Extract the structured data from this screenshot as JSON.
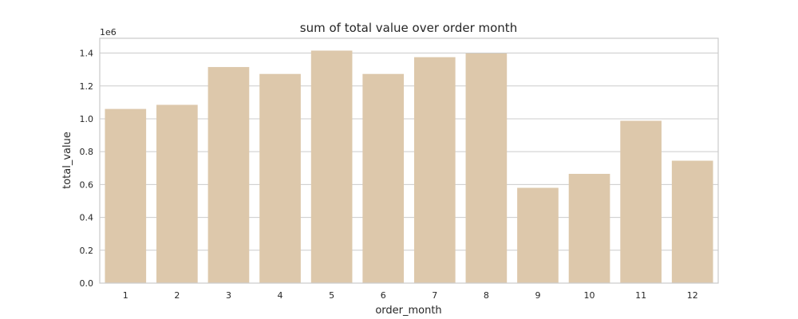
{
  "chart_data": {
    "type": "bar",
    "title": "sum of total value over order month",
    "xlabel": "order_month",
    "ylabel": "total_value",
    "y_scale_label": "1e6",
    "categories": [
      "1",
      "2",
      "3",
      "4",
      "5",
      "6",
      "7",
      "8",
      "9",
      "10",
      "11",
      "12"
    ],
    "values": [
      1060000,
      1085000,
      1315000,
      1273000,
      1415000,
      1273000,
      1375000,
      1398000,
      580000,
      665000,
      988000,
      745000
    ],
    "y_ticks": [
      "0.0",
      "0.2",
      "0.4",
      "0.6",
      "0.8",
      "1.0",
      "1.2",
      "1.4"
    ],
    "ylim": [
      0,
      1490000
    ],
    "grid": "horizontal",
    "bar_color": "#ddc8ab"
  }
}
